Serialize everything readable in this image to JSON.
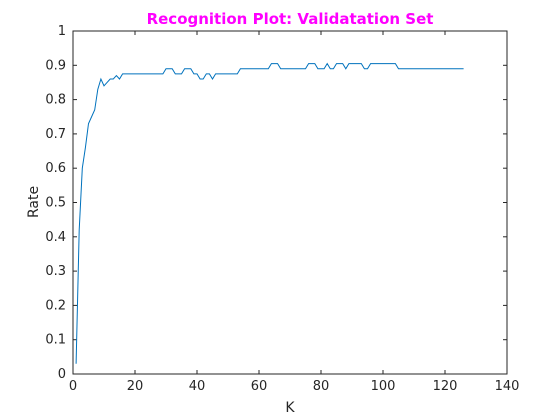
{
  "chart_data": {
    "type": "line",
    "title": "Recognition Plot: Validatation Set",
    "title_color": "#ff00ff",
    "xlabel": "K",
    "ylabel": "Rate",
    "xlim": [
      0,
      140
    ],
    "ylim": [
      0,
      1
    ],
    "xticks": [
      0,
      20,
      40,
      60,
      80,
      100,
      120,
      140
    ],
    "yticks": [
      0,
      0.1,
      0.2,
      0.3,
      0.4,
      0.5,
      0.6,
      0.7,
      0.8,
      0.9,
      1
    ],
    "xtick_labels": [
      "0",
      "20",
      "40",
      "60",
      "80",
      "100",
      "120",
      "140"
    ],
    "ytick_labels": [
      "0",
      "0.1",
      "0.2",
      "0.3",
      "0.4",
      "0.5",
      "0.6",
      "0.7",
      "0.8",
      "0.9",
      "1"
    ],
    "grid": false,
    "line_color": "#0072bd",
    "series": [
      {
        "x": [
          1,
          2,
          3,
          4,
          5,
          6,
          7,
          8,
          9,
          10,
          11,
          12,
          13,
          14,
          15,
          16,
          17,
          18,
          20,
          25,
          29,
          30,
          31,
          32,
          33,
          34,
          35,
          36,
          37,
          38,
          39,
          40,
          41,
          42,
          43,
          44,
          45,
          46,
          47,
          48,
          50,
          52,
          53,
          54,
          56,
          60,
          63,
          64,
          65,
          66,
          67,
          68,
          70,
          72,
          75,
          76,
          77,
          78,
          79,
          80,
          81,
          82,
          83,
          84,
          85,
          86,
          87,
          88,
          89,
          90,
          91,
          92,
          93,
          94,
          95,
          96,
          97,
          98,
          100,
          102,
          103,
          104,
          105,
          106,
          110,
          115,
          120,
          126
        ],
        "y": [
          0.03,
          0.42,
          0.6,
          0.66,
          0.73,
          0.75,
          0.77,
          0.83,
          0.86,
          0.84,
          0.85,
          0.86,
          0.86,
          0.87,
          0.86,
          0.875,
          0.875,
          0.875,
          0.875,
          0.875,
          0.875,
          0.89,
          0.89,
          0.89,
          0.875,
          0.875,
          0.875,
          0.89,
          0.89,
          0.89,
          0.875,
          0.875,
          0.86,
          0.86,
          0.875,
          0.875,
          0.86,
          0.875,
          0.875,
          0.875,
          0.875,
          0.875,
          0.875,
          0.89,
          0.89,
          0.89,
          0.89,
          0.905,
          0.905,
          0.905,
          0.89,
          0.89,
          0.89,
          0.89,
          0.89,
          0.905,
          0.905,
          0.905,
          0.89,
          0.89,
          0.89,
          0.905,
          0.89,
          0.89,
          0.905,
          0.905,
          0.905,
          0.89,
          0.905,
          0.905,
          0.905,
          0.905,
          0.905,
          0.89,
          0.89,
          0.905,
          0.905,
          0.905,
          0.905,
          0.905,
          0.905,
          0.905,
          0.89,
          0.89,
          0.89,
          0.89,
          0.89,
          0.89
        ]
      }
    ]
  }
}
